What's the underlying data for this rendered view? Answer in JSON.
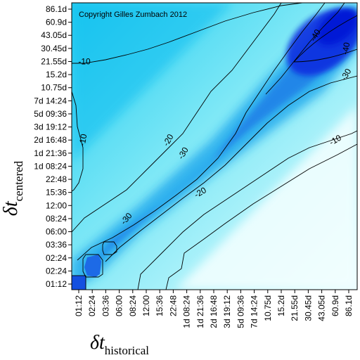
{
  "chart_data": {
    "type": "heatmap",
    "title": "",
    "copyright": "Copyright Gilles Zumbach 2012",
    "x_axis": {
      "label_symbol": "δt",
      "label_subscript": "historical",
      "ticks": [
        "01:12",
        "02:24",
        "03:36",
        "06:00",
        "08:24",
        "12:00",
        "15:36",
        "22:48",
        "1d 08:24",
        "1d 21:36",
        "2d 16:48",
        "3d 19:12",
        "5d 09:36",
        "7d 14:24",
        "10.75d",
        "15.2d",
        "21.55d",
        "30.45d",
        "43.05d",
        "60.9d",
        "86.1d"
      ]
    },
    "y_axis": {
      "label_symbol": "δt",
      "label_subscript": "centered",
      "ticks": [
        "01:12",
        "02:24",
        "02:24",
        "03:36",
        "06:00",
        "08:24",
        "12:00",
        "15:36",
        "22:48",
        "1d 08:24",
        "1d 21:36",
        "2d 16:48",
        "3d 19:12",
        "5d 09:36",
        "7d 14:24",
        "10.75d",
        "15.2d",
        "21.55d",
        "30.45d",
        "43.05d",
        "60.9d",
        "86.1d"
      ]
    },
    "contour_labels": [
      {
        "text": "-10",
        "x_tick": "01:12",
        "y_tick": "21.55d"
      },
      {
        "text": "-10",
        "x_tick": "01:12",
        "y_tick": "2d 16:48"
      },
      {
        "text": "-20",
        "x_tick": "15:36",
        "y_tick": "2d 16:48"
      },
      {
        "text": "-30",
        "x_tick": "22:48",
        "y_tick": "1d 21:36"
      },
      {
        "text": "-20",
        "x_tick": "1d 21:36",
        "y_tick": "15.36"
      },
      {
        "text": "-30",
        "x_tick": "06:00",
        "y_tick": "08:24"
      },
      {
        "text": "-40",
        "x_tick": "30.45d",
        "y_tick": "43.05d"
      },
      {
        "text": "-40",
        "x_tick": "86.1d",
        "y_tick": "30.45d"
      },
      {
        "text": "-30",
        "x_tick": "86.1d",
        "y_tick": "15.2d"
      },
      {
        "text": "-10",
        "x_tick": "60.9d",
        "y_tick": "2d 16:48"
      }
    ],
    "legend": "none",
    "grid": false
  }
}
